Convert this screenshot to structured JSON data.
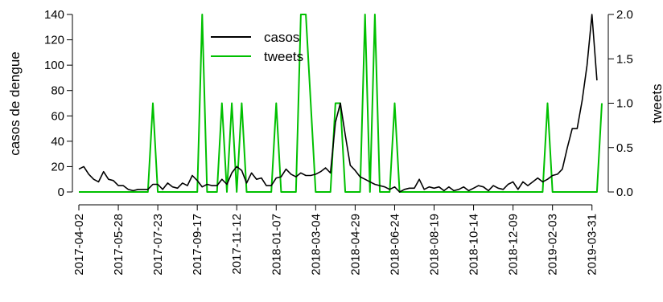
{
  "chart_data": {
    "type": "line",
    "y_left": {
      "label": "casos de dengue",
      "range": [
        0,
        140
      ],
      "ticks": [
        "0",
        "20",
        "40",
        "60",
        "80",
        "100",
        "120",
        "140"
      ]
    },
    "y_right": {
      "label": "tweets",
      "range": [
        0,
        2
      ],
      "ticks": [
        "0.0",
        "0.5",
        "1.0",
        "1.5",
        "2.0"
      ]
    },
    "x_range": [
      "2017-04-02",
      "2019-04-14"
    ],
    "x_ticks": [
      "2017-04-02",
      "2017-05-28",
      "2017-07-23",
      "2017-09-17",
      "2017-11-12",
      "2018-01-07",
      "2018-03-04",
      "2018-04-29",
      "2018-06-24",
      "2018-08-19",
      "2018-10-14",
      "2018-12-09",
      "2019-02-03",
      "2019-03-31"
    ],
    "legend": {
      "placement": "top-center",
      "entries": [
        "casos",
        "tweets"
      ]
    },
    "colors": {
      "casos": "#000000",
      "tweets": "#00c000"
    },
    "series": [
      {
        "name": "casos",
        "axis": "left",
        "points": [
          [
            "2017-04-02",
            18
          ],
          [
            "2017-04-09",
            20
          ],
          [
            "2017-04-16",
            14
          ],
          [
            "2017-04-23",
            10
          ],
          [
            "2017-04-30",
            8
          ],
          [
            "2017-05-07",
            16
          ],
          [
            "2017-05-14",
            10
          ],
          [
            "2017-05-21",
            9
          ],
          [
            "2017-05-28",
            5
          ],
          [
            "2017-06-04",
            5
          ],
          [
            "2017-06-11",
            2
          ],
          [
            "2017-06-18",
            1
          ],
          [
            "2017-06-25",
            2
          ],
          [
            "2017-07-02",
            2
          ],
          [
            "2017-07-09",
            2
          ],
          [
            "2017-07-16",
            6
          ],
          [
            "2017-07-23",
            6
          ],
          [
            "2017-07-30",
            2
          ],
          [
            "2017-08-06",
            7
          ],
          [
            "2017-08-13",
            4
          ],
          [
            "2017-08-20",
            3
          ],
          [
            "2017-08-27",
            7
          ],
          [
            "2017-09-03",
            5
          ],
          [
            "2017-09-10",
            13
          ],
          [
            "2017-09-17",
            9
          ],
          [
            "2017-09-24",
            4
          ],
          [
            "2017-10-01",
            6
          ],
          [
            "2017-10-08",
            5
          ],
          [
            "2017-10-15",
            5
          ],
          [
            "2017-10-22",
            10
          ],
          [
            "2017-10-29",
            6
          ],
          [
            "2017-11-05",
            15
          ],
          [
            "2017-11-12",
            20
          ],
          [
            "2017-11-19",
            17
          ],
          [
            "2017-11-26",
            7
          ],
          [
            "2017-12-03",
            15
          ],
          [
            "2017-12-10",
            10
          ],
          [
            "2017-12-17",
            11
          ],
          [
            "2017-12-24",
            5
          ],
          [
            "2017-12-31",
            5
          ],
          [
            "2018-01-07",
            11
          ],
          [
            "2018-01-14",
            12
          ],
          [
            "2018-01-21",
            18
          ],
          [
            "2018-01-28",
            14
          ],
          [
            "2018-02-04",
            12
          ],
          [
            "2018-02-11",
            15
          ],
          [
            "2018-02-18",
            13
          ],
          [
            "2018-02-25",
            13
          ],
          [
            "2018-03-04",
            14
          ],
          [
            "2018-03-11",
            16
          ],
          [
            "2018-03-18",
            19
          ],
          [
            "2018-03-25",
            15
          ],
          [
            "2018-04-01",
            55
          ],
          [
            "2018-04-08",
            70
          ],
          [
            "2018-04-15",
            45
          ],
          [
            "2018-04-22",
            21
          ],
          [
            "2018-04-29",
            17
          ],
          [
            "2018-05-06",
            12
          ],
          [
            "2018-05-13",
            10
          ],
          [
            "2018-05-20",
            8
          ],
          [
            "2018-05-27",
            6
          ],
          [
            "2018-06-03",
            5
          ],
          [
            "2018-06-10",
            4
          ],
          [
            "2018-06-17",
            2
          ],
          [
            "2018-06-24",
            4
          ],
          [
            "2018-07-01",
            0
          ],
          [
            "2018-07-08",
            2
          ],
          [
            "2018-07-15",
            3
          ],
          [
            "2018-07-22",
            3
          ],
          [
            "2018-07-29",
            10
          ],
          [
            "2018-08-05",
            2
          ],
          [
            "2018-08-12",
            4
          ],
          [
            "2018-08-19",
            3
          ],
          [
            "2018-08-26",
            4
          ],
          [
            "2018-09-02",
            1
          ],
          [
            "2018-09-09",
            4
          ],
          [
            "2018-09-16",
            1
          ],
          [
            "2018-09-23",
            2
          ],
          [
            "2018-09-30",
            4
          ],
          [
            "2018-10-07",
            1
          ],
          [
            "2018-10-14",
            3
          ],
          [
            "2018-10-21",
            5
          ],
          [
            "2018-10-28",
            4
          ],
          [
            "2018-11-04",
            1
          ],
          [
            "2018-11-11",
            5
          ],
          [
            "2018-11-18",
            3
          ],
          [
            "2018-11-25",
            2
          ],
          [
            "2018-12-02",
            6
          ],
          [
            "2018-12-09",
            8
          ],
          [
            "2018-12-16",
            2
          ],
          [
            "2018-12-23",
            8
          ],
          [
            "2018-12-30",
            5
          ],
          [
            "2019-01-06",
            8
          ],
          [
            "2019-01-13",
            11
          ],
          [
            "2019-01-20",
            8
          ],
          [
            "2019-01-27",
            10
          ],
          [
            "2019-02-03",
            13
          ],
          [
            "2019-02-10",
            14
          ],
          [
            "2019-02-17",
            18
          ],
          [
            "2019-02-24",
            35
          ],
          [
            "2019-03-03",
            50
          ],
          [
            "2019-03-10",
            50
          ],
          [
            "2019-03-17",
            72
          ],
          [
            "2019-03-24",
            100
          ],
          [
            "2019-03-31",
            140
          ],
          [
            "2019-04-07",
            88
          ]
        ]
      },
      {
        "name": "tweets",
        "axis": "right",
        "points": [
          [
            "2017-04-02",
            0
          ],
          [
            "2017-07-09",
            0
          ],
          [
            "2017-07-16",
            1
          ],
          [
            "2017-07-23",
            0
          ],
          [
            "2017-09-17",
            0
          ],
          [
            "2017-09-24",
            2
          ],
          [
            "2017-10-01",
            0
          ],
          [
            "2017-10-15",
            0
          ],
          [
            "2017-10-22",
            1
          ],
          [
            "2017-10-29",
            0
          ],
          [
            "2017-11-05",
            1
          ],
          [
            "2017-11-12",
            0
          ],
          [
            "2017-11-19",
            1
          ],
          [
            "2017-11-26",
            0
          ],
          [
            "2017-12-31",
            0
          ],
          [
            "2018-01-07",
            1
          ],
          [
            "2018-01-14",
            0
          ],
          [
            "2018-02-04",
            0
          ],
          [
            "2018-02-11",
            2
          ],
          [
            "2018-02-18",
            2
          ],
          [
            "2018-02-25",
            1
          ],
          [
            "2018-03-04",
            0
          ],
          [
            "2018-03-25",
            0
          ],
          [
            "2018-04-01",
            1
          ],
          [
            "2018-04-08",
            1
          ],
          [
            "2018-04-15",
            0
          ],
          [
            "2018-05-06",
            0
          ],
          [
            "2018-05-13",
            2
          ],
          [
            "2018-05-20",
            0
          ],
          [
            "2018-05-27",
            2
          ],
          [
            "2018-06-03",
            0
          ],
          [
            "2018-06-17",
            0
          ],
          [
            "2018-06-24",
            1
          ],
          [
            "2018-07-01",
            0
          ],
          [
            "2019-01-20",
            0
          ],
          [
            "2019-01-27",
            1
          ],
          [
            "2019-02-03",
            0
          ],
          [
            "2019-04-07",
            0
          ],
          [
            "2019-04-14",
            1
          ]
        ]
      }
    ]
  }
}
